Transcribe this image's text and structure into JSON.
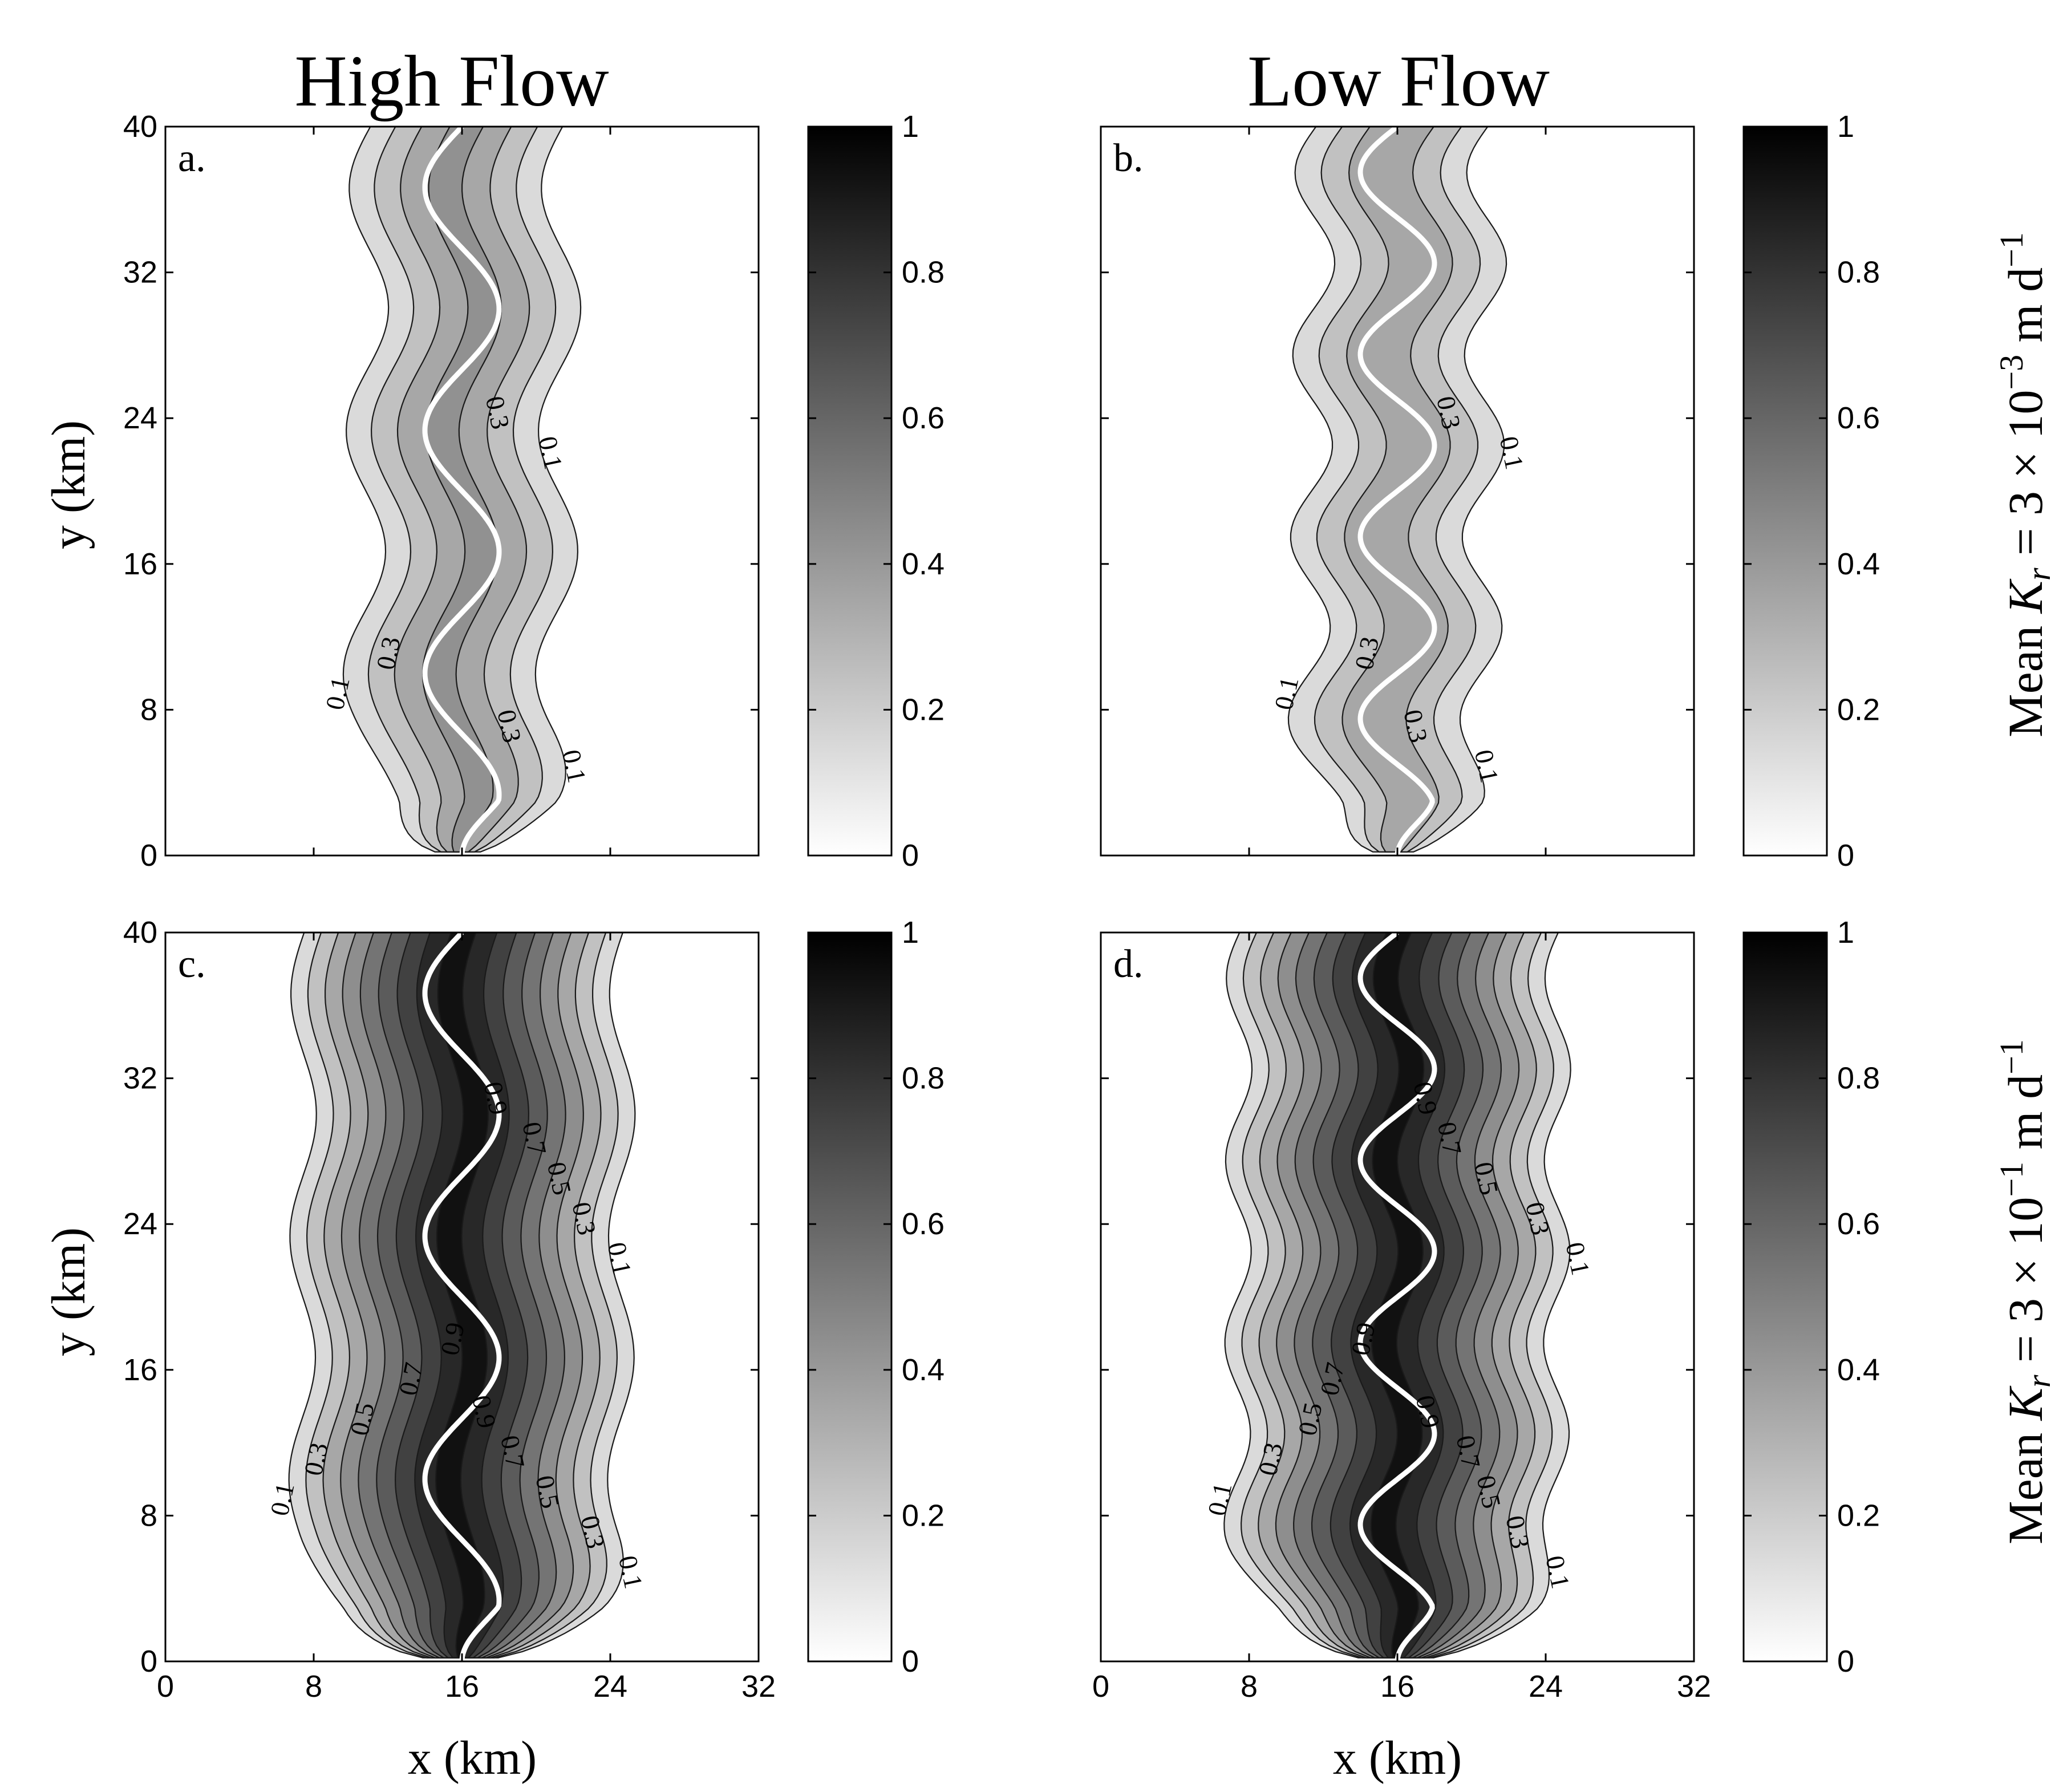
{
  "column_titles": [
    "High Flow",
    "Low Flow"
  ],
  "row_colorbar_labels": [
    {
      "prefix": "Mean ",
      "var": "K",
      "sub": "r",
      "suffix": " = 3 × 10",
      "exp": "−3",
      "unit": " m d",
      "unit_exp": "−1"
    },
    {
      "prefix": "Mean ",
      "var": "K",
      "sub": "r",
      "suffix": " = 3 × 10",
      "exp": "−1",
      "unit": " m d",
      "unit_exp": "−1"
    }
  ],
  "axes": {
    "xlabel": "x (km)",
    "ylabel": "y (km)",
    "xlim": [
      0,
      32
    ],
    "ylim": [
      0,
      40
    ],
    "xticks": [
      "0",
      "8",
      "16",
      "24",
      "32"
    ],
    "yticks": [
      "0",
      "8",
      "16",
      "24",
      "32",
      "40"
    ]
  },
  "colorbar": {
    "range": [
      0,
      1
    ],
    "ticks": [
      "0",
      "0.2",
      "0.4",
      "0.6",
      "0.8",
      "1"
    ],
    "colormap": "gray (white at 0, black at 1)"
  },
  "chart_data": [
    {
      "type": "heatmap",
      "panel": "a.",
      "column": "High Flow",
      "contour_levels_labeled": [
        "0.1",
        "0.3"
      ],
      "river_meanders": 3,
      "peak_value": 0.45,
      "plume_half_width_km": 6.5
    },
    {
      "type": "heatmap",
      "panel": "b.",
      "column": "Low Flow",
      "contour_levels_labeled": [
        "0.1",
        "0.3"
      ],
      "river_meanders": 4,
      "peak_value": 0.4,
      "plume_half_width_km": 6.0
    },
    {
      "type": "heatmap",
      "panel": "c.",
      "column": "High Flow",
      "contour_levels_labeled": [
        "0.1",
        "0.3",
        "0.5",
        "0.7",
        "0.9"
      ],
      "river_meanders": 3,
      "peak_value": 0.95,
      "plume_half_width_km": 9.5
    },
    {
      "type": "heatmap",
      "panel": "d.",
      "column": "Low Flow",
      "contour_levels_labeled": [
        "0.1",
        "0.3",
        "0.5",
        "0.7",
        "0.9"
      ],
      "river_meanders": 4,
      "peak_value": 0.95,
      "plume_half_width_km": 9.5
    }
  ]
}
